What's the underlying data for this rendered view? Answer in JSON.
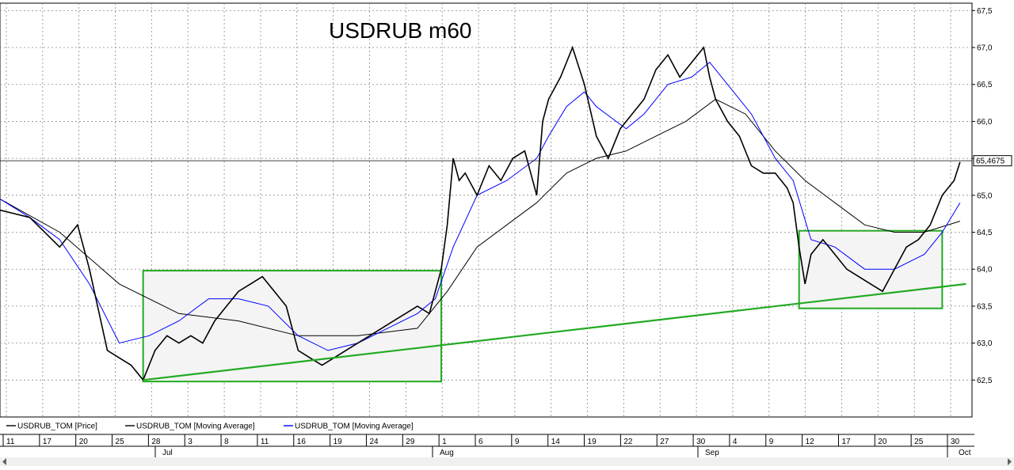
{
  "chart_data": {
    "type": "line",
    "title": "USDRUB m60",
    "ylim": [
      62.0,
      67.6
    ],
    "y_ticks": [
      "62,5",
      "63,0",
      "63,5",
      "64,0",
      "64,5",
      "65,0",
      "65,5",
      "66,0",
      "66,5",
      "67,0",
      "67,5"
    ],
    "y_tick_values": [
      62.5,
      63.0,
      63.5,
      64.0,
      64.5,
      65.0,
      65.5,
      66.0,
      66.5,
      67.0,
      67.5
    ],
    "last_price_label": "65,4675",
    "last_price": 65.4675,
    "x_day_ticks": [
      "11",
      "17",
      "20",
      "25",
      "28",
      "3",
      "8",
      "11",
      "16",
      "19",
      "24",
      "29",
      "1",
      "6",
      "9",
      "14",
      "19",
      "22",
      "27",
      "30",
      "4",
      "9",
      "12",
      "17",
      "20",
      "25",
      "30"
    ],
    "x_month_labels": [
      "Jul",
      "Aug",
      "Sep",
      "Oct"
    ],
    "grid": true,
    "series": [
      {
        "name": "USDRUB_TOM [Price]",
        "color": "#000000",
        "points": [
          [
            0,
            64.8
          ],
          [
            5,
            64.7
          ],
          [
            10,
            64.3
          ],
          [
            13,
            64.6
          ],
          [
            15,
            64.0
          ],
          [
            18,
            62.9
          ],
          [
            20,
            62.8
          ],
          [
            22,
            62.7
          ],
          [
            24,
            62.5
          ],
          [
            26,
            62.9
          ],
          [
            28,
            63.1
          ],
          [
            30,
            63.0
          ],
          [
            32,
            63.1
          ],
          [
            34,
            63.0
          ],
          [
            36,
            63.3
          ],
          [
            38,
            63.5
          ],
          [
            40,
            63.7
          ],
          [
            42,
            63.8
          ],
          [
            44,
            63.9
          ],
          [
            46,
            63.7
          ],
          [
            48,
            63.5
          ],
          [
            50,
            62.9
          ],
          [
            52,
            62.8
          ],
          [
            54,
            62.7
          ],
          [
            56,
            62.8
          ],
          [
            58,
            62.9
          ],
          [
            60,
            63.0
          ],
          [
            62,
            63.1
          ],
          [
            64,
            63.2
          ],
          [
            66,
            63.3
          ],
          [
            68,
            63.4
          ],
          [
            70,
            63.5
          ],
          [
            72,
            63.4
          ],
          [
            74,
            64.0
          ],
          [
            75,
            64.6
          ],
          [
            76,
            65.5
          ],
          [
            77,
            65.2
          ],
          [
            78,
            65.3
          ],
          [
            80,
            65.0
          ],
          [
            82,
            65.4
          ],
          [
            84,
            65.2
          ],
          [
            86,
            65.5
          ],
          [
            88,
            65.6
          ],
          [
            90,
            65.0
          ],
          [
            91,
            66.0
          ],
          [
            92,
            66.3
          ],
          [
            94,
            66.6
          ],
          [
            96,
            67.0
          ],
          [
            98,
            66.5
          ],
          [
            100,
            65.8
          ],
          [
            102,
            65.5
          ],
          [
            104,
            65.9
          ],
          [
            106,
            66.1
          ],
          [
            108,
            66.3
          ],
          [
            110,
            66.7
          ],
          [
            112,
            66.9
          ],
          [
            114,
            66.6
          ],
          [
            116,
            66.8
          ],
          [
            118,
            67.0
          ],
          [
            119,
            66.6
          ],
          [
            120,
            66.3
          ],
          [
            122,
            66.0
          ],
          [
            124,
            65.8
          ],
          [
            126,
            65.4
          ],
          [
            128,
            65.3
          ],
          [
            130,
            65.3
          ],
          [
            132,
            65.1
          ],
          [
            133,
            64.9
          ],
          [
            134,
            64.3
          ],
          [
            135,
            63.8
          ],
          [
            136,
            64.2
          ],
          [
            138,
            64.4
          ],
          [
            140,
            64.2
          ],
          [
            142,
            64.0
          ],
          [
            144,
            63.9
          ],
          [
            146,
            63.8
          ],
          [
            148,
            63.7
          ],
          [
            150,
            64.0
          ],
          [
            152,
            64.3
          ],
          [
            154,
            64.4
          ],
          [
            156,
            64.6
          ],
          [
            158,
            65.0
          ],
          [
            160,
            65.2
          ],
          [
            161,
            65.45
          ]
        ]
      },
      {
        "name": "USDRUB_TOM [Moving Average]",
        "color": "#000000",
        "points": [
          [
            0,
            64.95
          ],
          [
            10,
            64.5
          ],
          [
            20,
            63.8
          ],
          [
            30,
            63.4
          ],
          [
            40,
            63.3
          ],
          [
            50,
            63.1
          ],
          [
            60,
            63.1
          ],
          [
            70,
            63.2
          ],
          [
            75,
            63.7
          ],
          [
            80,
            64.3
          ],
          [
            85,
            64.6
          ],
          [
            90,
            64.9
          ],
          [
            95,
            65.3
          ],
          [
            100,
            65.5
          ],
          [
            105,
            65.6
          ],
          [
            110,
            65.8
          ],
          [
            115,
            66.0
          ],
          [
            120,
            66.3
          ],
          [
            125,
            66.1
          ],
          [
            130,
            65.6
          ],
          [
            135,
            65.2
          ],
          [
            140,
            64.9
          ],
          [
            145,
            64.6
          ],
          [
            150,
            64.5
          ],
          [
            155,
            64.5
          ],
          [
            161,
            64.65
          ]
        ]
      },
      {
        "name": "USDRUB_TOM [Moving Average]",
        "color": "#0000ff",
        "points": [
          [
            0,
            64.95
          ],
          [
            5,
            64.7
          ],
          [
            10,
            64.4
          ],
          [
            15,
            63.8
          ],
          [
            20,
            63.0
          ],
          [
            25,
            63.1
          ],
          [
            30,
            63.3
          ],
          [
            35,
            63.6
          ],
          [
            40,
            63.6
          ],
          [
            45,
            63.5
          ],
          [
            50,
            63.1
          ],
          [
            55,
            62.9
          ],
          [
            60,
            63.0
          ],
          [
            65,
            63.2
          ],
          [
            70,
            63.4
          ],
          [
            73,
            63.6
          ],
          [
            76,
            64.3
          ],
          [
            80,
            65.0
          ],
          [
            85,
            65.2
          ],
          [
            90,
            65.5
          ],
          [
            92,
            65.8
          ],
          [
            95,
            66.2
          ],
          [
            98,
            66.4
          ],
          [
            100,
            66.2
          ],
          [
            105,
            65.9
          ],
          [
            108,
            66.1
          ],
          [
            112,
            66.5
          ],
          [
            116,
            66.6
          ],
          [
            119,
            66.8
          ],
          [
            122,
            66.5
          ],
          [
            126,
            66.1
          ],
          [
            130,
            65.5
          ],
          [
            133,
            65.2
          ],
          [
            136,
            64.4
          ],
          [
            140,
            64.3
          ],
          [
            145,
            64.0
          ],
          [
            150,
            64.0
          ],
          [
            155,
            64.2
          ],
          [
            158,
            64.5
          ],
          [
            161,
            64.9
          ]
        ]
      }
    ],
    "trendline": {
      "color": "#22aa22",
      "from": [
        24,
        62.5
      ],
      "to": [
        162,
        63.8
      ]
    },
    "boxes": [
      {
        "color": "#22aa22",
        "x_from": 24,
        "x_to": 74,
        "y_from": 62.48,
        "y_to": 63.98
      },
      {
        "color": "#22aa22",
        "x_from": 134,
        "x_to": 158,
        "y_from": 63.47,
        "y_to": 64.52
      }
    ],
    "legend": [
      {
        "label": "USDRUB_TOM [Price]",
        "color": "#000000"
      },
      {
        "label": "USDRUB_TOM [Moving Average]",
        "color": "#000000"
      },
      {
        "label": "USDRUB_TOM [Moving Average]",
        "color": "#0000ff"
      }
    ]
  }
}
